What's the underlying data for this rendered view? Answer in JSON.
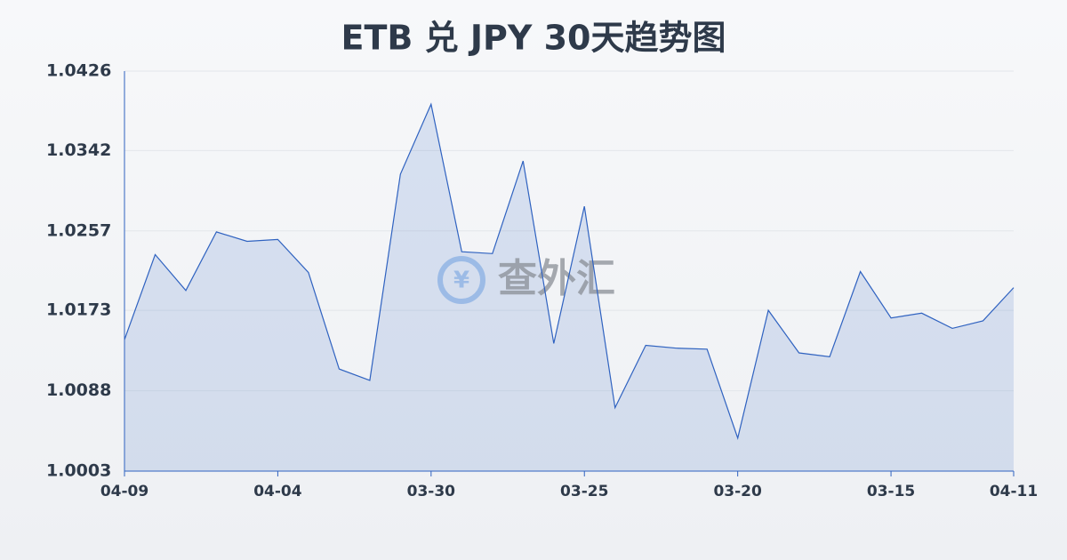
{
  "chart_data": {
    "type": "area",
    "title": "ETB 兑 JPY 30天趋势图",
    "watermark": "查外汇",
    "categories": [
      "04-09",
      null,
      null,
      null,
      null,
      "04-04",
      null,
      null,
      null,
      null,
      "03-30",
      null,
      null,
      null,
      null,
      "03-25",
      null,
      null,
      null,
      null,
      "03-20",
      null,
      null,
      null,
      null,
      "03-15",
      null,
      null,
      null,
      "04-11"
    ],
    "series": [
      {
        "name": "ETB/JPY",
        "color": "#2f62c0",
        "values": [
          1.0142,
          1.0232,
          1.0194,
          1.0256,
          1.0246,
          1.0248,
          1.0213,
          1.0111,
          1.0099,
          1.0317,
          1.0391,
          1.0235,
          1.0233,
          1.0331,
          1.0138,
          1.0283,
          1.007,
          1.0136,
          1.0133,
          1.0132,
          1.0038,
          1.0173,
          1.0128,
          1.0124,
          1.0214,
          1.0165,
          1.017,
          1.0154,
          1.0162,
          1.0197
        ]
      }
    ],
    "ylim": [
      1.0003,
      1.0426
    ],
    "yticks": [
      1.0003,
      1.0088,
      1.0173,
      1.0257,
      1.0342,
      1.0426
    ],
    "grid": true
  }
}
